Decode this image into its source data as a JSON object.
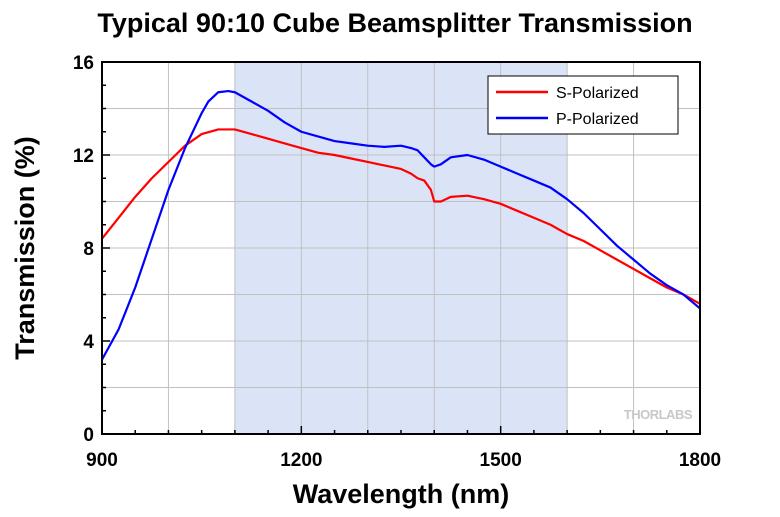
{
  "chart_data": {
    "type": "line",
    "title": "Typical 90:10 Cube Beamsplitter Transmission",
    "xlabel": "Wavelength (nm)",
    "ylabel": "Transmission (%)",
    "xlim": [
      900,
      1800
    ],
    "ylim": [
      0,
      16
    ],
    "x_ticks": [
      900,
      1200,
      1500,
      1800
    ],
    "y_ticks": [
      0,
      4,
      8,
      12,
      16
    ],
    "grid": true,
    "legend_position": "top-right",
    "watermark": "THORLABS",
    "shaded_region": {
      "x_start": 1100,
      "x_end": 1600,
      "color": "#dbe4f6"
    },
    "series": [
      {
        "name": "S-Polarized",
        "color": "#ff0000",
        "x": [
          900,
          925,
          950,
          975,
          1000,
          1025,
          1050,
          1075,
          1100,
          1125,
          1150,
          1175,
          1200,
          1225,
          1250,
          1275,
          1300,
          1325,
          1350,
          1365,
          1375,
          1385,
          1395,
          1400,
          1410,
          1425,
          1450,
          1475,
          1500,
          1525,
          1550,
          1575,
          1600,
          1625,
          1650,
          1675,
          1700,
          1725,
          1750,
          1775,
          1800
        ],
        "y": [
          8.4,
          9.3,
          10.2,
          11.0,
          11.7,
          12.4,
          12.9,
          13.1,
          13.1,
          12.9,
          12.7,
          12.5,
          12.3,
          12.1,
          12.0,
          11.85,
          11.7,
          11.55,
          11.4,
          11.2,
          11.0,
          10.9,
          10.5,
          10.0,
          10.0,
          10.2,
          10.25,
          10.1,
          9.9,
          9.6,
          9.3,
          9.0,
          8.6,
          8.3,
          7.9,
          7.5,
          7.1,
          6.7,
          6.3,
          6.0,
          5.6
        ]
      },
      {
        "name": "P-Polarized",
        "color": "#0000ff",
        "x": [
          900,
          925,
          950,
          975,
          1000,
          1025,
          1050,
          1060,
          1075,
          1090,
          1100,
          1125,
          1150,
          1175,
          1200,
          1225,
          1250,
          1275,
          1300,
          1325,
          1350,
          1365,
          1375,
          1385,
          1395,
          1400,
          1410,
          1425,
          1450,
          1475,
          1500,
          1525,
          1550,
          1575,
          1600,
          1625,
          1650,
          1675,
          1700,
          1725,
          1750,
          1775,
          1800
        ],
        "y": [
          3.2,
          4.5,
          6.3,
          8.4,
          10.5,
          12.3,
          13.8,
          14.3,
          14.7,
          14.75,
          14.7,
          14.3,
          13.9,
          13.4,
          13.0,
          12.8,
          12.6,
          12.5,
          12.4,
          12.35,
          12.4,
          12.3,
          12.2,
          11.9,
          11.6,
          11.5,
          11.6,
          11.9,
          12.0,
          11.8,
          11.5,
          11.2,
          10.9,
          10.6,
          10.1,
          9.5,
          8.8,
          8.1,
          7.5,
          6.9,
          6.4,
          6.0,
          5.4
        ]
      }
    ]
  }
}
